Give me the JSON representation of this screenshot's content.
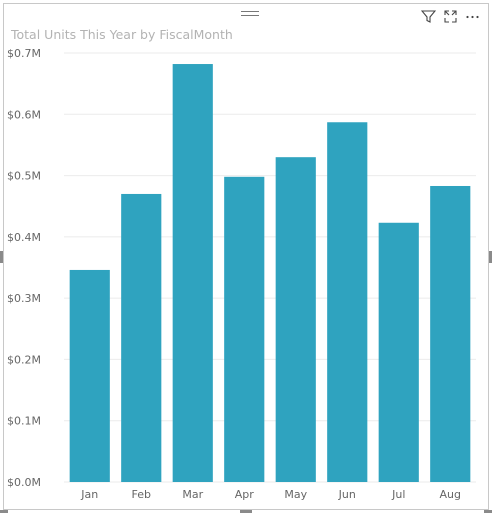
{
  "visual": {
    "title": "Total Units This Year by FiscalMonth",
    "icons": [
      "filter-icon",
      "focus-mode-icon",
      "more-options-icon"
    ]
  },
  "chart_data": {
    "type": "bar",
    "title": "Total Units This Year by FiscalMonth",
    "xlabel": "",
    "ylabel": "",
    "categories": [
      "Jan",
      "Feb",
      "Mar",
      "Apr",
      "May",
      "Jun",
      "Jul",
      "Aug"
    ],
    "values": [
      346000,
      470000,
      682000,
      498000,
      530000,
      587000,
      423000,
      483000
    ],
    "ylim": [
      0,
      700000
    ],
    "yticks": [
      0,
      100000,
      200000,
      300000,
      400000,
      500000,
      600000,
      700000
    ],
    "ytick_labels": [
      "$0.0M",
      "$0.1M",
      "$0.2M",
      "$0.3M",
      "$0.4M",
      "$0.5M",
      "$0.6M",
      "$0.7M"
    ],
    "grid": true,
    "bar_color": "#2fa3bf",
    "grid_color": "#ebebeb"
  }
}
